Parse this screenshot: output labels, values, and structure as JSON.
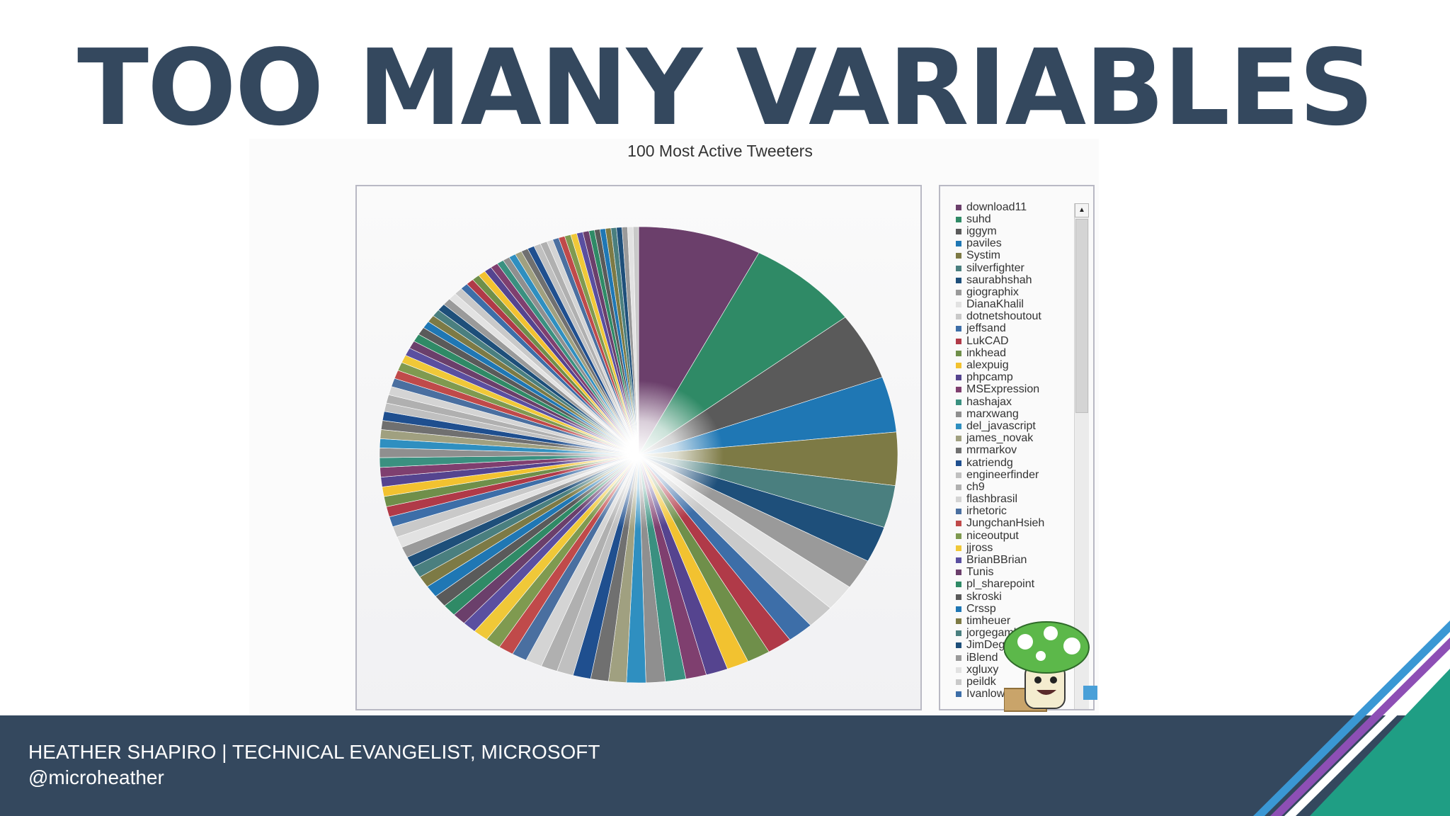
{
  "slide": {
    "title": "TOO MANY VARIABLES",
    "speaker": "HEATHER SHAPIRO  |  TECHNICAL EVANGELIST, MICROSOFT",
    "handle": "@microheather"
  },
  "colors": {
    "navy": "#34485e",
    "accent_blue": "#3a97d4",
    "accent_purple": "#8d4fb5",
    "accent_green": "#1f9e84"
  },
  "chart_data": {
    "type": "pie",
    "title": "100 Most Active Tweeters",
    "legend_position": "right",
    "legend": [
      "download11",
      "suhd",
      "iggym",
      "paviles",
      "Systim",
      "silverfighter",
      "saurabhshah",
      "giographix",
      "DianaKhalil",
      "dotnetshoutout",
      "jeffsand",
      "LukCAD",
      "inkhead",
      "alexpuig",
      "phpcamp",
      "MSExpression",
      "hashajax",
      "marxwang",
      "del_javascript",
      "james_novak",
      "mrmarkov",
      "katriendg",
      "engineerfinder",
      "ch9",
      "flashbrasil",
      "irhetoric",
      "JungchanHsieh",
      "niceoutput",
      "jjross",
      "BrianBBrian",
      "Tunis",
      "pl_sharepoint",
      "skroski",
      "Crssp",
      "timheuer",
      "jorgegamb",
      "JimDeger",
      "iBlend",
      "xgluxy",
      "peildk",
      "Ivanlow"
    ],
    "palette": [
      "#6b3f6b",
      "#2f8a66",
      "#5a5a5a",
      "#1f77b4",
      "#7d7a45",
      "#4a7f7f",
      "#1e4f7a",
      "#9a9a9a",
      "#e2e2e2",
      "#c9c9c9",
      "#3d6ea8",
      "#b03a48",
      "#6f8f4a",
      "#f2c230",
      "#55448f",
      "#7f3f6f",
      "#3a9080",
      "#8f8f8f",
      "#2f8fc0",
      "#a0a080",
      "#707070",
      "#1f4f8f",
      "#c0c0c0",
      "#b0b0b0",
      "#d4d4d4",
      "#4a6fa0",
      "#c04a4a",
      "#7f9a50",
      "#f0c838",
      "#5a4fa0"
    ],
    "values": [
      9.0,
      8.2,
      5.6,
      4.6,
      4.4,
      3.5,
      3.0,
      2.5,
      2.2,
      2.0,
      1.9,
      1.8,
      1.7,
      1.6,
      1.6,
      1.5,
      1.5,
      1.4,
      1.4,
      1.3,
      1.3,
      1.3,
      1.2,
      1.2,
      1.2,
      1.1,
      1.1,
      1.1,
      1.1,
      1.0,
      1.0,
      1.0,
      1.0,
      1.0,
      0.95,
      0.95,
      0.9,
      0.9,
      0.9,
      0.9,
      0.85,
      0.85,
      0.85,
      0.8,
      0.8,
      0.8,
      0.8,
      0.8,
      0.75,
      0.75,
      0.75,
      0.75,
      0.7,
      0.7,
      0.7,
      0.7,
      0.7,
      0.7,
      0.65,
      0.65,
      0.65,
      0.65,
      0.65,
      0.6,
      0.6,
      0.6,
      0.6,
      0.6,
      0.6,
      0.6,
      0.55,
      0.55,
      0.55,
      0.55,
      0.55,
      0.55,
      0.5,
      0.5,
      0.5,
      0.5,
      0.5,
      0.5,
      0.5,
      0.5,
      0.45,
      0.45,
      0.45,
      0.45,
      0.45,
      0.45,
      0.45,
      0.4,
      0.4,
      0.4,
      0.4,
      0.4,
      0.4,
      0.4,
      0.4,
      0.4
    ]
  }
}
